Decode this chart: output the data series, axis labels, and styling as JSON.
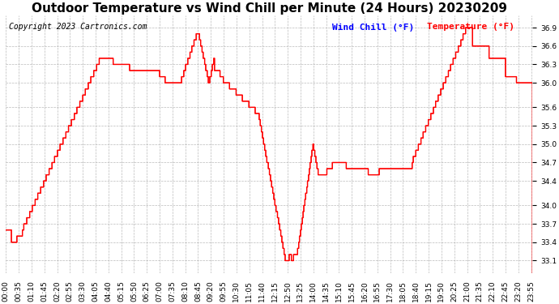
{
  "title": "Outdoor Temperature vs Wind Chill per Minute (24 Hours) 20230209",
  "copyright": "Copyright 2023 Cartronics.com",
  "legend_wind_chill": "Wind Chill (°F)",
  "legend_temperature": "Temperature (°F)",
  "wind_chill_color": "blue",
  "temperature_color": "red",
  "line_color": "red",
  "background_color": "white",
  "grid_color": "#aaaaaa",
  "yticks": [
    33.1,
    33.4,
    33.7,
    34.0,
    34.4,
    34.7,
    35.0,
    35.3,
    35.6,
    36.0,
    36.3,
    36.6,
    36.9
  ],
  "ylim": [
    32.9,
    37.1
  ],
  "xtick_labels": [
    "00:00",
    "00:35",
    "01:10",
    "01:45",
    "02:20",
    "02:55",
    "03:30",
    "04:05",
    "04:40",
    "05:15",
    "05:50",
    "06:25",
    "07:00",
    "07:35",
    "08:10",
    "08:45",
    "09:20",
    "09:55",
    "10:30",
    "11:05",
    "11:40",
    "12:15",
    "12:50",
    "13:25",
    "14:00",
    "14:35",
    "15:10",
    "15:45",
    "16:20",
    "16:55",
    "17:30",
    "18:05",
    "18:40",
    "19:15",
    "19:50",
    "20:25",
    "21:00",
    "21:35",
    "22:10",
    "22:45",
    "23:20",
    "23:55"
  ],
  "title_fontsize": 11,
  "copyright_fontsize": 7,
  "tick_fontsize": 6.5,
  "legend_fontsize": 8,
  "figsize": [
    6.9,
    3.75
  ],
  "dpi": 100
}
